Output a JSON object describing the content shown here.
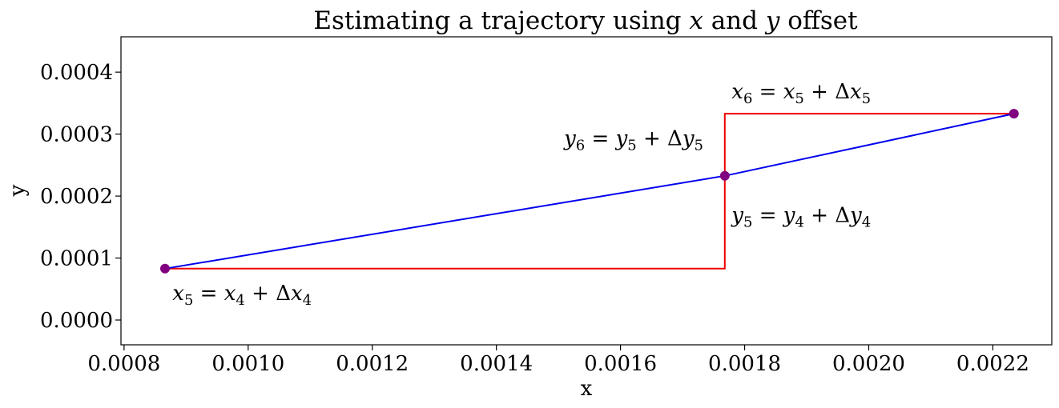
{
  "chart_data": {
    "type": "line",
    "title_parts": [
      "Estimating a trajectory using ",
      "x",
      " and ",
      "y",
      " offset"
    ],
    "xlabel": "x",
    "ylabel": "y",
    "xlim": [
      0.000795,
      0.002295
    ],
    "ylim": [
      -4e-05,
      0.000457
    ],
    "xticks": [
      "0.0008",
      "0.0010",
      "0.0012",
      "0.0014",
      "0.0016",
      "0.0018",
      "0.0020",
      "0.0022"
    ],
    "xtick_values": [
      0.0008,
      0.001,
      0.0012,
      0.0014,
      0.0016,
      0.0018,
      0.002,
      0.0022
    ],
    "yticks": [
      "0.0000",
      "0.0001",
      "0.0002",
      "0.0003",
      "0.0004"
    ],
    "ytick_values": [
      0.0,
      0.0001,
      0.0002,
      0.0003,
      0.0004
    ],
    "grid": false,
    "series": [
      {
        "points": [
          [
            0.000866,
            8.29e-05
          ],
          [
            0.001768,
            0.0002326
          ],
          [
            0.002234,
            0.0003329
          ]
        ],
        "color": "#0000ee",
        "marker_color": "#800080"
      },
      {
        "points": [
          [
            0.000866,
            8.29e-05
          ],
          [
            0.001768,
            8.29e-05
          ],
          [
            0.001768,
            0.0003329
          ],
          [
            0.002234,
            0.0003329
          ]
        ],
        "color": "#ee0000"
      }
    ],
    "annotations": [
      {
        "label": "x5_eq",
        "var": "x",
        "sub": "5",
        "rhs_var": "x",
        "rhs_sub": "4",
        "delta_var": "x",
        "delta_sub": "4",
        "x": 0.000878,
        "y": 3.26e-05
      },
      {
        "label": "y5_eq",
        "var": "y",
        "sub": "5",
        "rhs_var": "y",
        "rhs_sub": "4",
        "delta_var": "y",
        "delta_sub": "4",
        "x": 0.001779,
        "y": 0.000158
      },
      {
        "label": "y6_eq",
        "var": "y",
        "sub": "6",
        "rhs_var": "y",
        "rhs_sub": "5",
        "delta_var": "y",
        "delta_sub": "5",
        "x": 0.001509,
        "y": 0.0002821
      },
      {
        "label": "x6_eq",
        "var": "x",
        "sub": "6",
        "rhs_var": "x",
        "rhs_sub": "5",
        "delta_var": "x",
        "delta_sub": "5",
        "x": 0.001779,
        "y": 0.0003575
      }
    ]
  }
}
